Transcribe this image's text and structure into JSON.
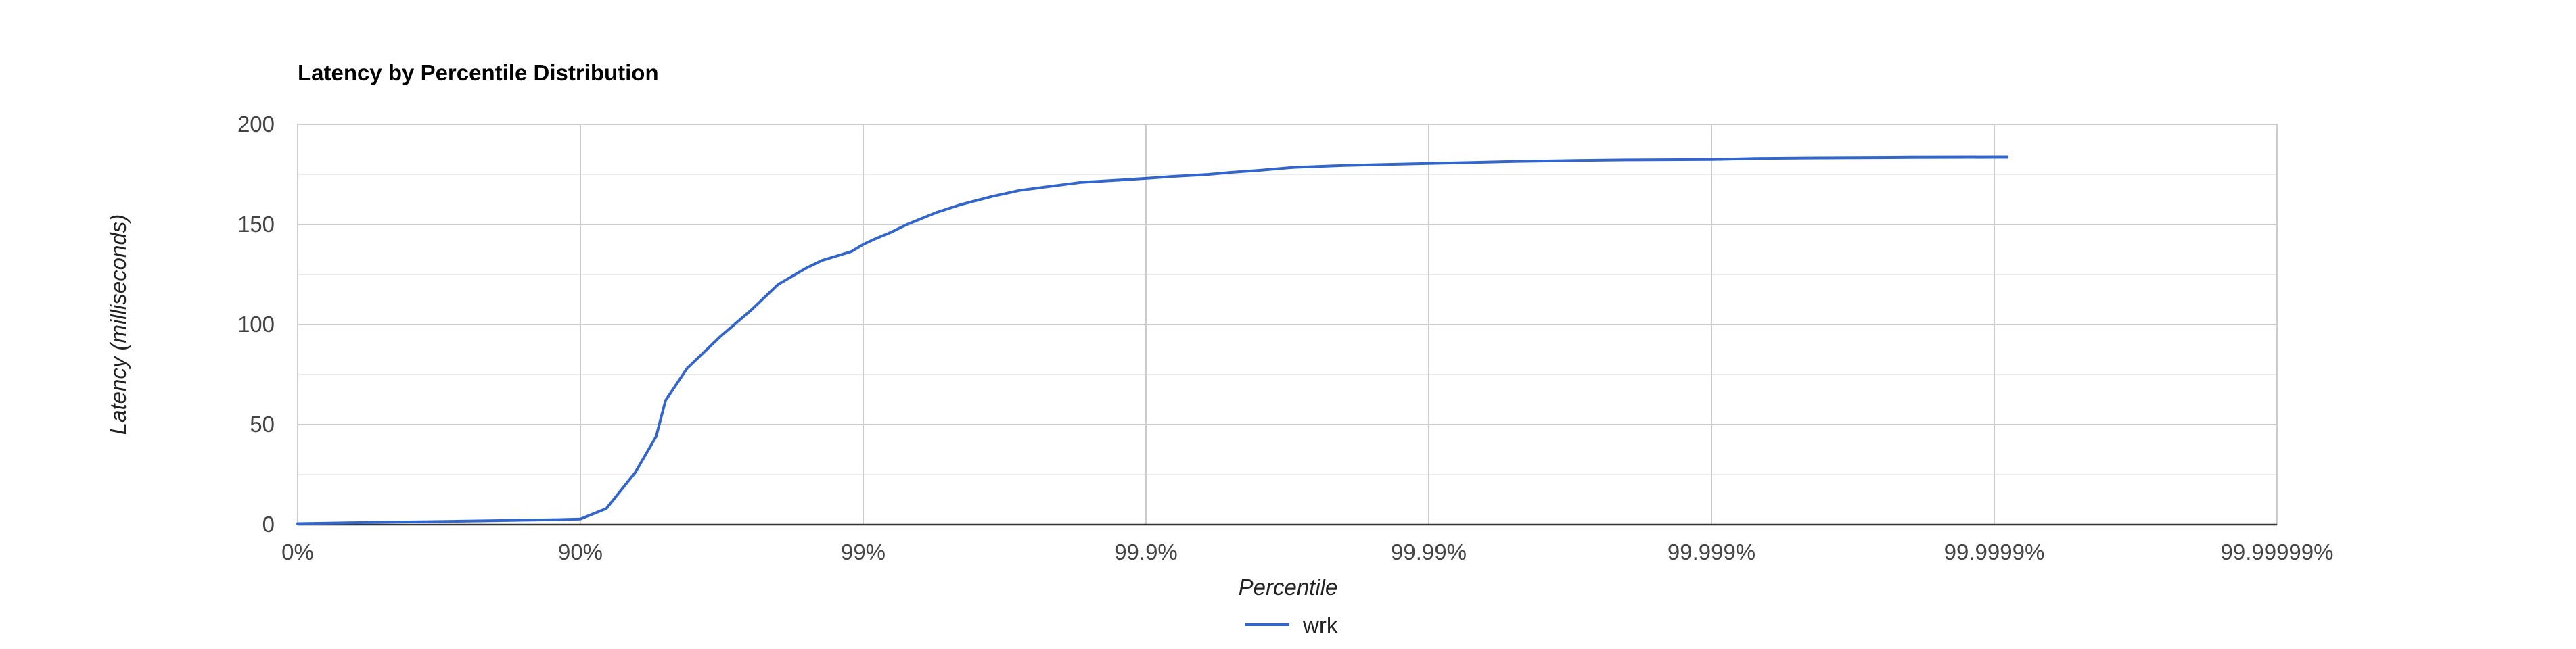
{
  "chart_data": {
    "type": "line",
    "title": "Latency by Percentile Distribution",
    "xlabel": "Percentile",
    "ylabel": "Latency (milliseconds)",
    "x_scale": "log-inverse-percentile",
    "x_ticks": [
      "0%",
      "90%",
      "99%",
      "99.9%",
      "99.99%",
      "99.999%",
      "99.9999%",
      "99.99999%"
    ],
    "x_tick_values": [
      0,
      90,
      99,
      99.9,
      99.99,
      99.999,
      99.9999,
      99.99999
    ],
    "y_ticks": [
      "0",
      "50",
      "100",
      "150",
      "200"
    ],
    "y_tick_values": [
      0,
      50,
      100,
      150,
      200
    ],
    "ylim": [
      0,
      200
    ],
    "grid": true,
    "legend": "bottom",
    "series": [
      {
        "name": "wrk",
        "color": "#3366cc",
        "points": [
          [
            0,
            0.5
          ],
          [
            50,
            1.2
          ],
          [
            70,
            1.6
          ],
          [
            80,
            2.0
          ],
          [
            88,
            2.5
          ],
          [
            90,
            2.8
          ],
          [
            91.9,
            8
          ],
          [
            93.6,
            26
          ],
          [
            94.6,
            44
          ],
          [
            95.0,
            62
          ],
          [
            95.8,
            78
          ],
          [
            96.8,
            94
          ],
          [
            97.5,
            107
          ],
          [
            98.0,
            120
          ],
          [
            98.4,
            128
          ],
          [
            98.6,
            132
          ],
          [
            98.9,
            136.5
          ],
          [
            99.0,
            140
          ],
          [
            99.1,
            143
          ],
          [
            99.2,
            146
          ],
          [
            99.3,
            150
          ],
          [
            99.45,
            156
          ],
          [
            99.55,
            160
          ],
          [
            99.65,
            164
          ],
          [
            99.72,
            167
          ],
          [
            99.78,
            169
          ],
          [
            99.83,
            171
          ],
          [
            99.87,
            172
          ],
          [
            99.9,
            173
          ],
          [
            99.92,
            174
          ],
          [
            99.94,
            175
          ],
          [
            99.95,
            176
          ],
          [
            99.96,
            177
          ],
          [
            99.97,
            178.5
          ],
          [
            99.98,
            179.5
          ],
          [
            99.99,
            180.5
          ],
          [
            99.993,
            181
          ],
          [
            99.995,
            181.5
          ],
          [
            99.997,
            182
          ],
          [
            99.998,
            182.3
          ],
          [
            99.999,
            182.5
          ],
          [
            99.9993,
            183
          ],
          [
            99.9995,
            183.2
          ],
          [
            99.9998,
            183.5
          ],
          [
            99.9999,
            183.6
          ],
          [
            99.99991,
            183.6
          ]
        ]
      }
    ]
  }
}
